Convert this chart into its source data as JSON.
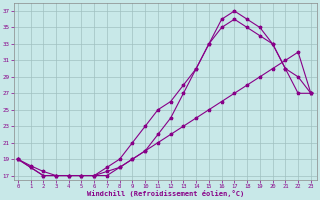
{
  "xlabel": "Windchill (Refroidissement éolien,°C)",
  "x_ticks": [
    0,
    1,
    2,
    3,
    4,
    5,
    6,
    7,
    8,
    9,
    10,
    11,
    12,
    13,
    14,
    15,
    16,
    17,
    18,
    19,
    20,
    21,
    22,
    23
  ],
  "y_ticks": [
    17,
    19,
    21,
    23,
    25,
    27,
    29,
    31,
    33,
    35,
    37
  ],
  "ylim": [
    16.5,
    38
  ],
  "xlim": [
    -0.3,
    23.5
  ],
  "bg_color": "#c8e8e8",
  "line_color": "#880088",
  "grid_color": "#a0c0c0",
  "line1_x": [
    0,
    1,
    2,
    3,
    4,
    5,
    6,
    7,
    8,
    9,
    10,
    11,
    12,
    13,
    14,
    15,
    16,
    17,
    18,
    19,
    20,
    21,
    22,
    23
  ],
  "line1_y": [
    19,
    18,
    17,
    17,
    17,
    17,
    17,
    17,
    18,
    19,
    20,
    22,
    24,
    27,
    30,
    33,
    36,
    37,
    36,
    35,
    33,
    30,
    27,
    27
  ],
  "line2_x": [
    0,
    1,
    2,
    3,
    4,
    5,
    6,
    7,
    8,
    9,
    10,
    11,
    12,
    13,
    14,
    15,
    16,
    17,
    18,
    19,
    20,
    21,
    22,
    23
  ],
  "line2_y": [
    19,
    18,
    17,
    17,
    17,
    17,
    17,
    18,
    19,
    21,
    23,
    25,
    26,
    28,
    30,
    33,
    35,
    36,
    35,
    34,
    33,
    30,
    29,
    27
  ],
  "line3_x": [
    0,
    1,
    2,
    3,
    4,
    5,
    6,
    7,
    8,
    9,
    10,
    11,
    12,
    13,
    14,
    15,
    16,
    17,
    18,
    19,
    20,
    21,
    22,
    23
  ],
  "line3_y": [
    19,
    18.2,
    17.5,
    17,
    17,
    17,
    17,
    17.5,
    18,
    19,
    20,
    21,
    22,
    23,
    24,
    25,
    26,
    27,
    28,
    29,
    30,
    31,
    32,
    27
  ]
}
